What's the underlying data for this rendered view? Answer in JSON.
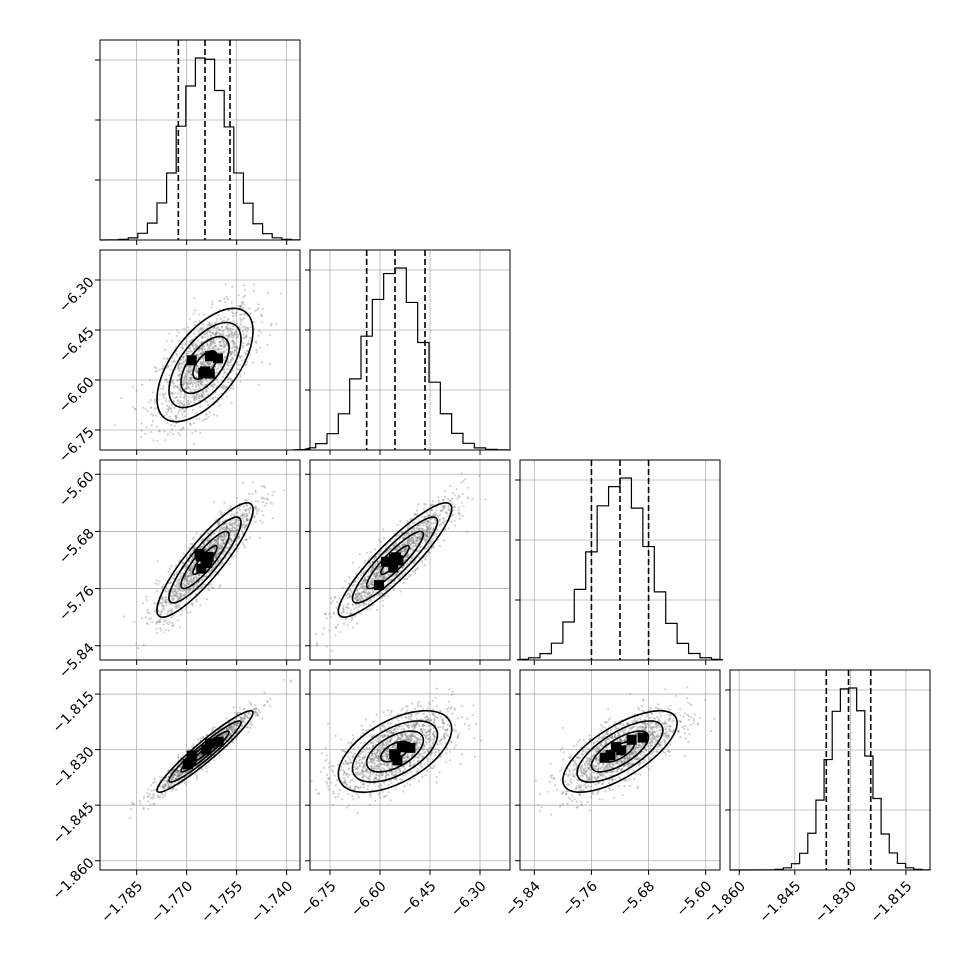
{
  "chart_data": {
    "type": "corner",
    "grid": true,
    "params": [
      {
        "range": [
          -1.796,
          -1.736
        ],
        "ticks": [
          -1.785,
          -1.77,
          -1.755,
          -1.74
        ],
        "labels": [
          "−1.785",
          "−1.770",
          "−1.755",
          "−1.740"
        ],
        "mean": -1.7645,
        "std": 0.0072,
        "quantiles": [
          -1.7725,
          -1.7645,
          -1.757
        ]
      },
      {
        "range": [
          -6.81,
          -6.21
        ],
        "ticks": [
          -6.75,
          -6.6,
          -6.45,
          -6.3
        ],
        "labels": [
          "−6.75",
          "−6.60",
          "−6.45",
          "−6.30"
        ],
        "mean": -6.555,
        "std": 0.085,
        "quantiles": [
          -6.64,
          -6.555,
          -6.465
        ]
      },
      {
        "range": [
          -5.86,
          -5.58
        ],
        "ticks": [
          -5.84,
          -5.76,
          -5.68,
          -5.6
        ],
        "labels": [
          "−5.84",
          "−5.76",
          "−5.68",
          "−5.60"
        ],
        "mean": -5.72,
        "std": 0.04,
        "quantiles": [
          -5.76,
          -5.72,
          -5.68
        ]
      },
      {
        "range": [
          -1.8625,
          -1.8085
        ],
        "ticks": [
          -1.86,
          -1.845,
          -1.83,
          -1.815
        ],
        "labels": [
          "−1.860",
          "−1.845",
          "−1.830",
          "−1.815"
        ],
        "mean": -1.8305,
        "std": 0.0055,
        "quantiles": [
          -1.8365,
          -1.8305,
          -1.8245
        ]
      }
    ],
    "correlations": [
      {
        "i": 1,
        "j": 0,
        "rho": 0.6
      },
      {
        "i": 2,
        "j": 0,
        "rho": 0.88
      },
      {
        "i": 2,
        "j": 1,
        "rho": 0.9
      },
      {
        "i": 3,
        "j": 0,
        "rho": 0.95
      },
      {
        "i": 3,
        "j": 1,
        "rho": 0.55
      },
      {
        "i": 3,
        "j": 2,
        "rho": 0.7
      }
    ],
    "contour_levels_sigma": [
      0.5,
      1.0,
      1.5,
      2.0
    ]
  }
}
